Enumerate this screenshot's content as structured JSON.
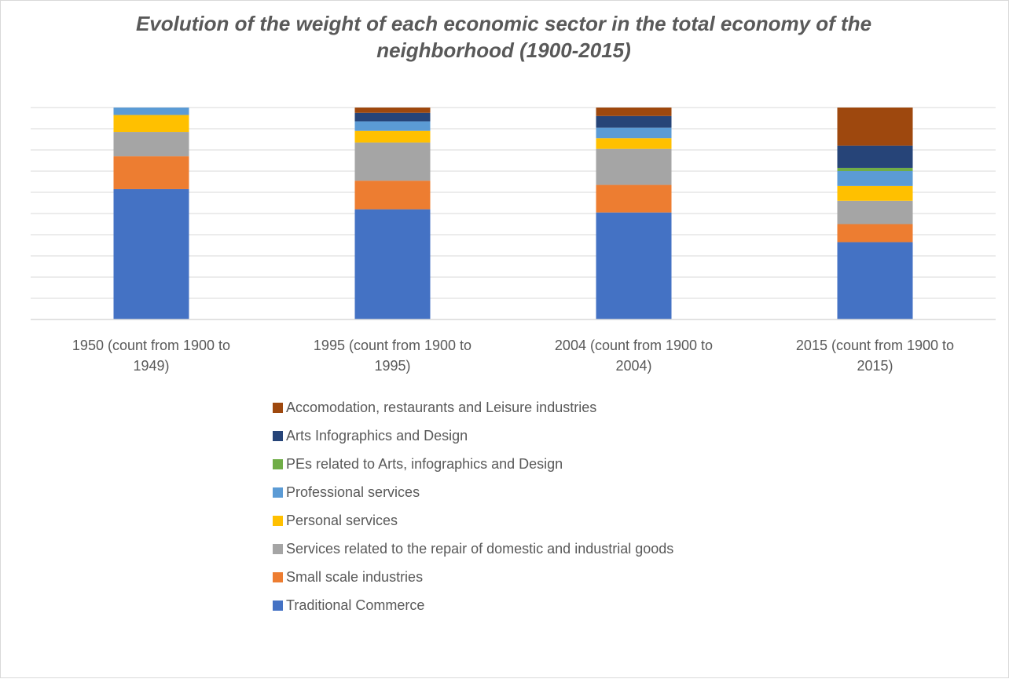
{
  "chart_data": {
    "type": "bar",
    "stacked": true,
    "title": "Evolution of the weight of each economic sector in the total economy of the neighborhood (1900-2015)",
    "xlabel": "",
    "ylabel": "",
    "ylim": [
      0,
      100
    ],
    "grid": true,
    "legend_position": "bottom",
    "categories": [
      [
        "1950 (count from 1900 to",
        "1949)"
      ],
      [
        "1995 (count from 1900 to",
        "1995)"
      ],
      [
        "2004 (count from 1900 to",
        "2004)"
      ],
      [
        "2015 (count from 1900 to",
        "2015)"
      ]
    ],
    "series": [
      {
        "name": "Traditional Commerce",
        "color": "#4472C4",
        "values": [
          61.5,
          52,
          50.5,
          36.5
        ]
      },
      {
        "name": "Small scale industries",
        "color": "#ED7D31",
        "values": [
          15.5,
          13.5,
          13,
          8.5
        ]
      },
      {
        "name": "Services related to the repair of domestic and industrial goods",
        "color": "#A5A5A5",
        "values": [
          11.5,
          18,
          17,
          11
        ]
      },
      {
        "name": "Personal services",
        "color": "#FFC000",
        "values": [
          8,
          5.5,
          5,
          7
        ]
      },
      {
        "name": "Professional services",
        "color": "#5B9BD5",
        "values": [
          3.5,
          4.5,
          5,
          7
        ]
      },
      {
        "name": "PEs related to Arts, infographics and Design",
        "color": "#70AD47",
        "values": [
          0,
          0,
          0,
          1.5
        ]
      },
      {
        "name": "Arts Infographics and Design",
        "color": "#264478",
        "values": [
          0,
          4,
          5.5,
          10.5
        ]
      },
      {
        "name": "Accomodation, restaurants and Leisure industries",
        "color": "#9E480E",
        "values": [
          0,
          2.5,
          4,
          18
        ]
      }
    ]
  }
}
